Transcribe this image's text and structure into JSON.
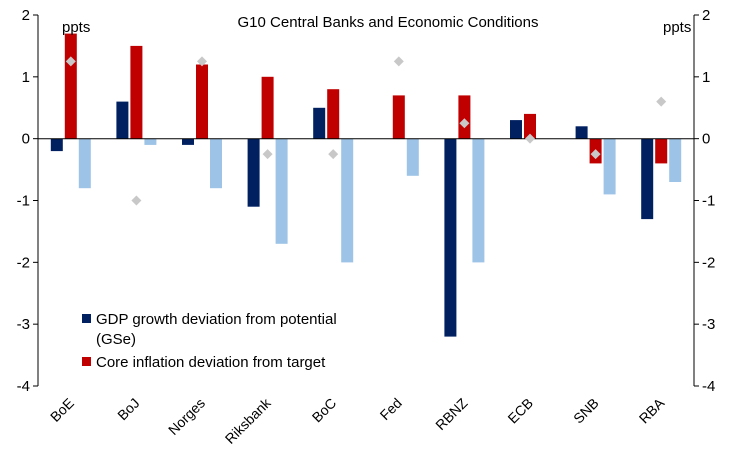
{
  "chart_data": {
    "type": "bar",
    "title": "G10 Central Banks and Economic Conditions",
    "ylabel_left": "ppts",
    "ylabel_right": "ppts",
    "ylim": [
      -4,
      2
    ],
    "yticks": [
      2,
      1,
      0,
      -1,
      -2,
      -3,
      -4
    ],
    "grid": false,
    "legend_position": "bottom-left",
    "categories": [
      "BoE",
      "BoJ",
      "Norges",
      "Riksbank",
      "BoC",
      "Fed",
      "RBNZ",
      "ECB",
      "SNB",
      "RBA"
    ],
    "series": [
      {
        "name": "GDP growth deviation from potential (GSe)",
        "legend_lines": [
          "GDP growth deviation from potential",
          "(GSe)"
        ],
        "color": "#002060",
        "values": [
          -0.2,
          0.6,
          -0.1,
          -1.1,
          0.5,
          null,
          -3.2,
          0.3,
          0.2,
          -1.3
        ]
      },
      {
        "name": "Core inflation deviation from target",
        "legend_lines": [
          "Core inflation deviation from target"
        ],
        "color": "#c00000",
        "values": [
          1.7,
          1.5,
          1.2,
          1.0,
          0.8,
          0.7,
          0.7,
          0.4,
          -0.4,
          -0.4
        ]
      },
      {
        "color": "#9dc3e6",
        "values": [
          -0.8,
          -0.1,
          -0.8,
          -1.7,
          -2.0,
          -0.6,
          -2.0,
          null,
          -0.9,
          -0.7
        ]
      },
      {
        "marker": "diamond",
        "color": "#c8c8c8",
        "values": [
          1.25,
          -1.0,
          1.25,
          -0.25,
          -0.25,
          1.25,
          0.25,
          0.0,
          -0.25,
          0.6
        ]
      }
    ]
  }
}
